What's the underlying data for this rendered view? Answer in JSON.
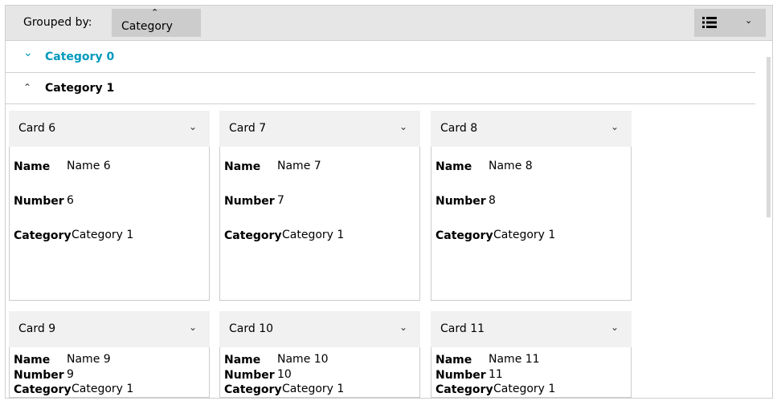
{
  "toolbar": {
    "grouped_by_label": "Grouped by:",
    "group_chip": "Category",
    "sort_icon": "chevron-up-icon",
    "view_icon": "list-icon",
    "view_chevron": "chevron-down-icon"
  },
  "colors": {
    "accent": "#0099bc",
    "toolbar_bg": "#e6e6e6",
    "card_header_bg": "#f1f1f1"
  },
  "groups": [
    {
      "title": "Category 0",
      "expanded": false
    },
    {
      "title": "Category 1",
      "expanded": true
    }
  ],
  "field_labels": {
    "name": "Name",
    "number": "Number",
    "category": "Category"
  },
  "cards": [
    {
      "title": "Card 6",
      "name": "Name 6",
      "number": "6",
      "category": "Category 1"
    },
    {
      "title": "Card 7",
      "name": "Name 7",
      "number": "7",
      "category": "Category 1"
    },
    {
      "title": "Card 8",
      "name": "Name 8",
      "number": "8",
      "category": "Category 1"
    },
    {
      "title": "Card 9",
      "name": "Name 9",
      "number": "9",
      "category": "Category 1"
    },
    {
      "title": "Card 10",
      "name": "Name 10",
      "number": "10",
      "category": "Category 1"
    },
    {
      "title": "Card 11",
      "name": "Name 11",
      "number": "11",
      "category": "Category 1"
    }
  ]
}
